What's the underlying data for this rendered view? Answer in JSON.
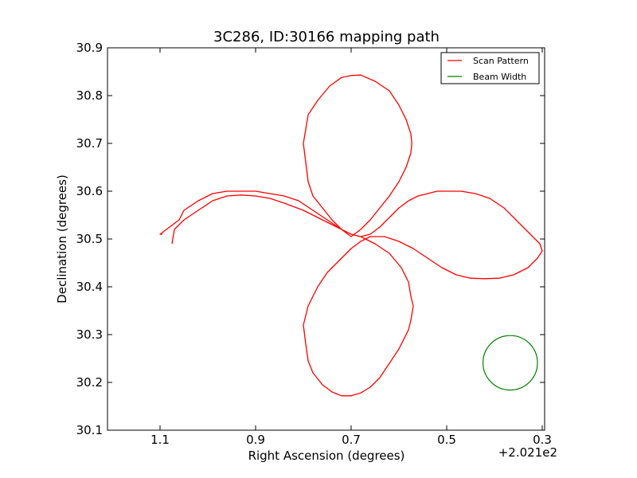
{
  "chart_data": {
    "type": "line",
    "title": "3C286, ID:30166 mapping path",
    "xlabel": "Right Ascension (degrees)",
    "ylabel": "Declination (degrees)",
    "x_offset_label": "+2.021e2",
    "xlim": [
      1.21,
      0.295
    ],
    "ylim": [
      30.1,
      30.9
    ],
    "x_inverted": true,
    "xticks": [
      1.1,
      0.9,
      0.7,
      0.5,
      0.3
    ],
    "xtick_labels": [
      "1.1",
      "0.9",
      "0.7",
      "0.5",
      "0.3"
    ],
    "yticks": [
      30.1,
      30.2,
      30.3,
      30.4,
      30.5,
      30.6,
      30.7,
      30.8,
      30.9
    ],
    "ytick_labels": [
      "30.1",
      "30.2",
      "30.3",
      "30.4",
      "30.5",
      "30.6",
      "30.7",
      "30.8",
      "30.9"
    ],
    "grid": false,
    "legend_position": "top-right",
    "series": [
      {
        "name": "Scan Pattern",
        "color": "#ff0000",
        "kind": "path",
        "x": [
          1.095,
          1.1,
          1.06,
          1.05,
          1.02,
          0.99,
          0.96,
          0.93,
          0.9,
          0.87,
          0.84,
          0.81,
          0.78,
          0.75,
          0.72,
          0.7,
          0.68,
          0.66,
          0.64,
          0.62,
          0.6,
          0.58,
          0.56,
          0.54,
          0.52,
          0.5,
          0.47,
          0.44,
          0.41,
          0.38,
          0.36,
          0.34,
          0.32,
          0.305,
          0.3,
          0.31,
          0.33,
          0.36,
          0.39,
          0.42,
          0.45,
          0.48,
          0.51,
          0.54,
          0.57,
          0.6,
          0.63,
          0.66,
          0.68,
          0.7,
          0.72,
          0.75,
          0.77,
          0.79,
          0.8,
          0.795,
          0.79,
          0.78,
          0.76,
          0.74,
          0.72,
          0.7,
          0.68,
          0.66,
          0.64,
          0.62,
          0.6,
          0.58,
          0.575,
          0.57,
          0.575,
          0.58,
          0.595,
          0.62,
          0.65,
          0.68,
          0.7,
          0.72,
          0.74,
          0.77,
          0.8,
          0.84,
          0.87,
          0.9,
          0.93,
          0.96,
          0.99,
          1.02,
          1.05,
          1.07,
          1.075
        ],
        "y": [
          30.51,
          30.51,
          30.54,
          30.56,
          30.58,
          30.595,
          30.6,
          30.6,
          30.6,
          30.595,
          30.59,
          30.58,
          30.56,
          30.54,
          30.52,
          30.51,
          30.505,
          30.51,
          30.525,
          30.545,
          30.565,
          30.58,
          30.59,
          30.595,
          30.6,
          30.6,
          30.6,
          30.595,
          30.585,
          30.565,
          30.545,
          30.525,
          30.505,
          30.49,
          30.475,
          30.46,
          30.44,
          30.425,
          30.418,
          30.417,
          30.418,
          30.425,
          30.44,
          30.46,
          30.48,
          30.495,
          30.505,
          30.505,
          30.495,
          30.48,
          30.46,
          30.43,
          30.4,
          30.36,
          30.32,
          30.28,
          30.245,
          30.22,
          30.195,
          30.18,
          30.172,
          30.172,
          30.178,
          30.19,
          30.21,
          30.24,
          30.27,
          30.31,
          30.33,
          30.36,
          30.38,
          30.41,
          30.44,
          30.47,
          30.49,
          30.505,
          30.51,
          30.52,
          30.53,
          30.545,
          30.56,
          30.575,
          30.585,
          30.59,
          30.592,
          30.59,
          30.58,
          30.56,
          30.54,
          30.52,
          30.49
        ]
      },
      {
        "name": "Beam Width",
        "color": "#008000",
        "kind": "circle",
        "center": [
          0.367,
          30.241
        ],
        "radius_deg": 0.057
      }
    ],
    "upper_lobe": {
      "x": [
        0.7,
        0.68,
        0.66,
        0.64,
        0.62,
        0.6,
        0.585,
        0.575,
        0.573,
        0.575,
        0.585,
        0.6,
        0.62,
        0.65,
        0.68,
        0.7,
        0.72,
        0.745,
        0.77,
        0.79,
        0.795,
        0.8,
        0.795,
        0.79,
        0.78,
        0.76,
        0.74,
        0.72,
        0.7
      ],
      "y": [
        30.505,
        30.52,
        30.54,
        30.565,
        30.59,
        30.62,
        30.65,
        30.68,
        30.7,
        30.72,
        30.75,
        30.78,
        30.81,
        30.83,
        30.843,
        30.842,
        30.838,
        30.82,
        30.79,
        30.76,
        30.73,
        30.7,
        30.66,
        30.62,
        30.59,
        30.565,
        30.54,
        30.52,
        30.505
      ]
    }
  }
}
